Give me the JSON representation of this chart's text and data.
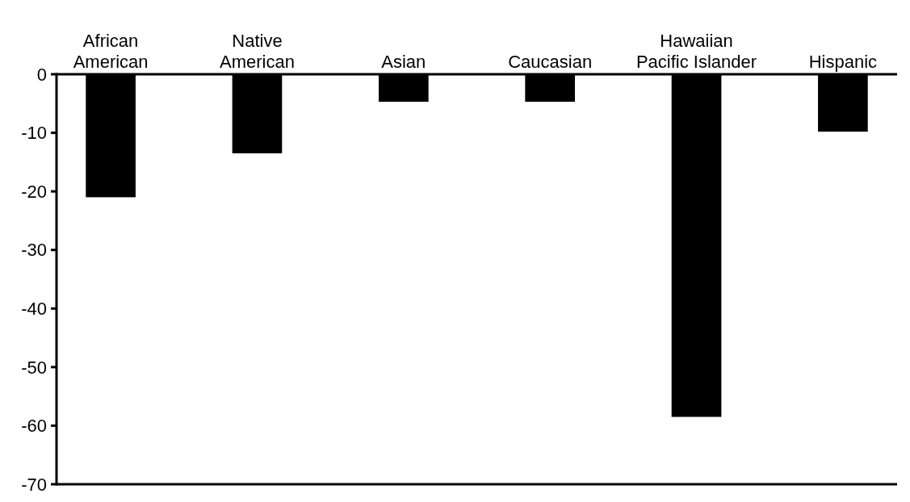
{
  "chart_data": {
    "type": "bar",
    "categories": [
      "African American",
      "Native American",
      "Asian",
      "Caucasian",
      "Hawaiian Pacific Islander",
      "Hispanic"
    ],
    "values": [
      -21,
      -13.5,
      -4.7,
      -4.7,
      -58.5,
      -9.8
    ],
    "color": "#000000",
    "ylim": [
      -70,
      0
    ],
    "yticks": [
      -70,
      -60,
      -50,
      -40,
      -30,
      -20,
      -10,
      0
    ],
    "grid": false
  }
}
